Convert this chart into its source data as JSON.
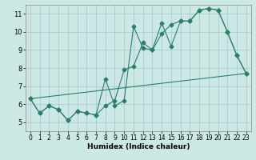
{
  "title": "",
  "xlabel": "Humidex (Indice chaleur)",
  "background_color": "#cce8e4",
  "grid_color": "#aacccc",
  "line_color": "#2d7d6e",
  "xlim": [
    -0.5,
    23.5
  ],
  "ylim": [
    4.5,
    11.5
  ],
  "yticks": [
    5,
    6,
    7,
    8,
    9,
    10,
    11
  ],
  "xticks": [
    0,
    1,
    2,
    3,
    4,
    5,
    6,
    7,
    8,
    9,
    10,
    11,
    12,
    13,
    14,
    15,
    16,
    17,
    18,
    19,
    20,
    21,
    22,
    23
  ],
  "series1_x": [
    0,
    1,
    2,
    3,
    4,
    5,
    6,
    7,
    8,
    9,
    10,
    11,
    12,
    13,
    14,
    15,
    16,
    17,
    18,
    19,
    20,
    21,
    22,
    23
  ],
  "series1_y": [
    6.3,
    5.5,
    5.9,
    5.7,
    5.1,
    5.6,
    5.5,
    5.4,
    7.4,
    5.9,
    6.2,
    10.3,
    9.1,
    9.0,
    10.5,
    9.2,
    10.6,
    10.6,
    11.2,
    11.3,
    11.2,
    10.0,
    8.7,
    7.7
  ],
  "series2_x": [
    0,
    1,
    2,
    3,
    4,
    5,
    6,
    7,
    8,
    9,
    10,
    11,
    12,
    13,
    14,
    15,
    16,
    17,
    18,
    19,
    20,
    21,
    22,
    23
  ],
  "series2_y": [
    6.3,
    5.5,
    5.9,
    5.7,
    5.1,
    5.6,
    5.5,
    5.4,
    5.9,
    6.2,
    7.9,
    8.1,
    9.4,
    9.0,
    9.9,
    10.4,
    10.6,
    10.6,
    11.2,
    11.3,
    11.2,
    10.0,
    8.7,
    7.7
  ],
  "series3_x": [
    0,
    23
  ],
  "series3_y": [
    6.3,
    7.7
  ],
  "xlabel_fontsize": 6.5,
  "tick_fontsize": 5.5
}
